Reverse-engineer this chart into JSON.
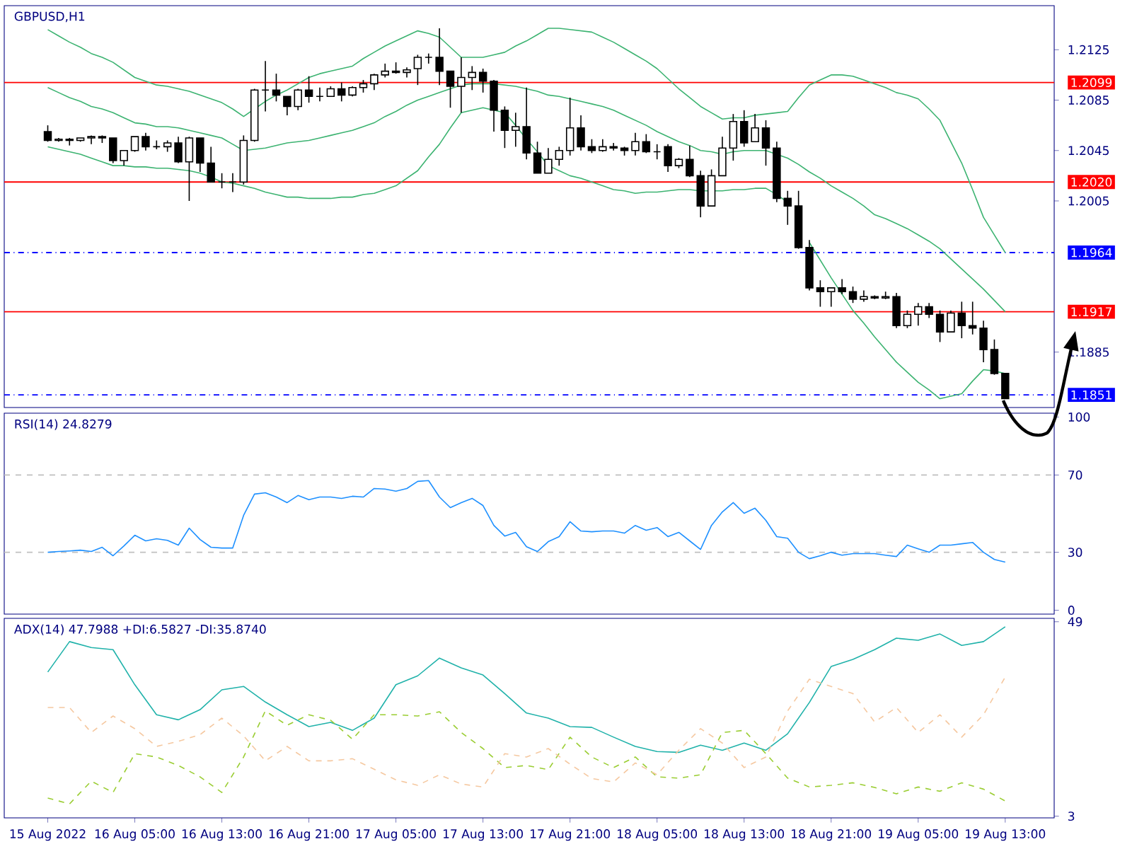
{
  "chart_data": [
    {
      "type": "candlestick",
      "title": "GBPUSD,H1",
      "color": "#000000",
      "categories": [
        null,
        null,
        null,
        null,
        null,
        null,
        null,
        null,
        null,
        null,
        null,
        null,
        null,
        null,
        null,
        null,
        null,
        null,
        null,
        null,
        null,
        null,
        null,
        null,
        null,
        null,
        null,
        null,
        null,
        null,
        null,
        null,
        null,
        null,
        null,
        null,
        null,
        null,
        null,
        null,
        null,
        null,
        null,
        null,
        null,
        null,
        null,
        null,
        null,
        null,
        null,
        null,
        null,
        null,
        null,
        null,
        null,
        null,
        null,
        null,
        null,
        null,
        null,
        null,
        null,
        null,
        null,
        null,
        null,
        null,
        null,
        null,
        null,
        null,
        null,
        null,
        null,
        null,
        null,
        null,
        null,
        null,
        null,
        null,
        null,
        null,
        null,
        null,
        null
      ],
      "ohlc": [
        [
          1.206,
          1.2065,
          1.2052,
          1.2053
        ],
        [
          1.2053,
          1.2055,
          1.2052,
          1.2054
        ],
        [
          1.2054,
          1.2055,
          1.2049,
          1.2053
        ],
        [
          1.2053,
          1.2055,
          1.2052,
          1.2055
        ],
        [
          1.2055,
          1.2057,
          1.205,
          1.2056
        ],
        [
          1.2056,
          1.2057,
          1.2051,
          1.2055
        ],
        [
          1.2055,
          1.2055,
          1.2035,
          1.2037
        ],
        [
          1.2037,
          1.2045,
          1.2033,
          1.2045
        ],
        [
          1.2045,
          1.2056,
          1.2044,
          1.2056
        ],
        [
          1.2056,
          1.2059,
          1.2045,
          1.2048
        ],
        [
          1.2048,
          1.2053,
          1.2046,
          1.2048
        ],
        [
          1.2048,
          1.2053,
          1.2044,
          1.2051
        ],
        [
          1.2051,
          1.2056,
          1.2035,
          1.2036
        ],
        [
          1.2036,
          1.2056,
          1.2005,
          1.2055
        ],
        [
          1.2055,
          1.2055,
          1.2028,
          1.2035
        ],
        [
          1.2035,
          1.2048,
          1.202,
          1.202
        ],
        [
          1.202,
          1.2027,
          1.2015,
          1.202
        ],
        [
          1.202,
          1.2027,
          1.2012,
          1.202
        ],
        [
          1.202,
          1.2057,
          1.2018,
          1.2053
        ],
        [
          1.2053,
          1.2094,
          1.2052,
          1.2093
        ],
        [
          1.2093,
          1.2116,
          1.2076,
          1.2093
        ],
        [
          1.2093,
          1.2106,
          1.2084,
          1.2089
        ],
        [
          1.2088,
          1.2088,
          1.2073,
          1.208
        ],
        [
          1.208,
          1.2094,
          1.2077,
          1.2093
        ],
        [
          1.2093,
          1.2104,
          1.2083,
          1.2088
        ],
        [
          1.2088,
          1.2095,
          1.2084,
          1.2088
        ],
        [
          1.2088,
          1.2096,
          1.2088,
          1.2094
        ],
        [
          1.2094,
          1.2099,
          1.2084,
          1.2089
        ],
        [
          1.2089,
          1.2096,
          1.2088,
          1.2095
        ],
        [
          1.2095,
          1.2101,
          1.2091,
          1.2098
        ],
        [
          1.2098,
          1.2106,
          1.2093,
          1.2105
        ],
        [
          1.2105,
          1.2114,
          1.2103,
          1.2108
        ],
        [
          1.2108,
          1.2115,
          1.2106,
          1.2107
        ],
        [
          1.2107,
          1.2111,
          1.2103,
          1.2109
        ],
        [
          1.211,
          1.2121,
          1.2097,
          1.2119
        ],
        [
          1.2119,
          1.2122,
          1.2114,
          1.2119
        ],
        [
          1.2119,
          1.2142,
          1.2097,
          1.2108
        ],
        [
          1.2108,
          1.2108,
          1.2079,
          1.2096
        ],
        [
          1.2096,
          1.2119,
          1.2075,
          1.2103
        ],
        [
          1.2103,
          1.2112,
          1.2093,
          1.2107
        ],
        [
          1.2107,
          1.211,
          1.2091,
          1.21
        ],
        [
          1.21,
          1.2101,
          1.206,
          1.2077
        ],
        [
          1.2077,
          1.208,
          1.2047,
          1.2061
        ],
        [
          1.2061,
          1.2075,
          1.2048,
          1.2064
        ],
        [
          1.2064,
          1.2095,
          1.2038,
          1.2043
        ],
        [
          1.2043,
          1.2052,
          1.2027,
          1.2027
        ],
        [
          1.2027,
          1.2047,
          1.2027,
          1.2038
        ],
        [
          1.2038,
          1.2048,
          1.2033,
          1.2045
        ],
        [
          1.2045,
          1.2087,
          1.2041,
          1.2063
        ],
        [
          1.2063,
          1.2073,
          1.2045,
          1.2048
        ],
        [
          1.2048,
          1.2054,
          1.2043,
          1.2045
        ],
        [
          1.2045,
          1.2054,
          1.2044,
          1.2048
        ],
        [
          1.2048,
          1.2051,
          1.2045,
          1.2047
        ],
        [
          1.2047,
          1.2048,
          1.2041,
          1.2045
        ],
        [
          1.2045,
          1.2059,
          1.2041,
          1.2052
        ],
        [
          1.2052,
          1.2058,
          1.2043,
          1.2044
        ],
        [
          1.2044,
          1.205,
          1.2038,
          1.2044
        ],
        [
          1.2048,
          1.205,
          1.2028,
          1.2033
        ],
        [
          1.2033,
          1.2039,
          1.2031,
          1.2038
        ],
        [
          1.2038,
          1.2049,
          1.2024,
          1.2025
        ],
        [
          1.2025,
          1.2029,
          1.1992,
          1.2001
        ],
        [
          1.2001,
          1.203,
          1.2001,
          1.2025
        ],
        [
          1.2025,
          1.2056,
          1.2025,
          1.2047
        ],
        [
          1.2047,
          1.2074,
          1.2037,
          1.2068
        ],
        [
          1.2068,
          1.2077,
          1.2048,
          1.2051
        ],
        [
          1.2052,
          1.2074,
          1.2052,
          1.2063
        ],
        [
          1.2063,
          1.2069,
          1.2033,
          1.2047
        ],
        [
          1.2047,
          1.2052,
          1.2004,
          1.2007
        ],
        [
          1.2007,
          1.2013,
          1.1986,
          1.2001
        ],
        [
          1.2001,
          1.2013,
          1.1967,
          1.1968
        ],
        [
          1.1968,
          1.1974,
          1.1934,
          1.1936
        ],
        [
          1.1936,
          1.1942,
          1.1921,
          1.1933
        ],
        [
          1.1933,
          1.1936,
          1.1921,
          1.1936
        ],
        [
          1.1936,
          1.1943,
          1.1931,
          1.1933
        ],
        [
          1.1933,
          1.1937,
          1.1924,
          1.1927
        ],
        [
          1.1927,
          1.1934,
          1.1925,
          1.1929
        ],
        [
          1.1929,
          1.193,
          1.1927,
          1.1928
        ],
        [
          1.1928,
          1.1933,
          1.1927,
          1.1929
        ],
        [
          1.1929,
          1.1932,
          1.1904,
          1.1906
        ],
        [
          1.1906,
          1.1918,
          1.1904,
          1.1915
        ],
        [
          1.1915,
          1.1924,
          1.1906,
          1.1921
        ],
        [
          1.1921,
          1.1924,
          1.1912,
          1.1915
        ],
        [
          1.1915,
          1.1918,
          1.1893,
          1.1901
        ],
        [
          1.1901,
          1.1918,
          1.1901,
          1.1916
        ],
        [
          1.1916,
          1.1925,
          1.1896,
          1.1906
        ],
        [
          1.1906,
          1.1925,
          1.1899,
          1.1904
        ],
        [
          1.1904,
          1.191,
          1.1877,
          1.1887
        ],
        [
          1.1887,
          1.1895,
          1.1867,
          1.1868
        ],
        [
          1.1868,
          1.1868,
          1.1848,
          1.1848
        ]
      ],
      "series": [
        {
          "type": "line",
          "color": "#3cb371",
          "values": [
            1.2141,
            1.2136,
            1.2131,
            1.2127,
            1.2122,
            1.2119,
            1.2115,
            1.2109,
            1.2103,
            1.21,
            1.2097,
            1.2096,
            1.2094,
            1.2092,
            1.2089,
            1.2086,
            1.2083,
            1.2078,
            1.2072,
            1.2078,
            1.2084,
            1.2089,
            1.2093,
            1.2098,
            1.2103,
            1.2106,
            1.2108,
            1.211,
            1.2112,
            1.2118,
            1.2123,
            1.2128,
            1.2132,
            1.2136,
            1.214,
            1.2138,
            1.2135,
            1.2127,
            1.2119,
            1.2119,
            1.2119,
            1.2121,
            1.2123,
            1.2128,
            1.2132,
            1.2137,
            1.2142,
            1.2142,
            1.2141,
            1.214,
            1.2139,
            1.2135,
            1.2131,
            1.2126,
            1.2121,
            1.2116,
            1.211,
            1.2102,
            1.2094,
            1.2087,
            1.208,
            1.2075,
            1.207,
            1.2071,
            1.2071,
            1.2073,
            1.2074,
            1.2075,
            1.2076,
            1.2087,
            1.2097,
            1.2101,
            1.2105,
            1.2105,
            1.2104,
            1.2101,
            1.2098,
            1.2095,
            1.2091,
            1.2089,
            1.2086,
            1.2078,
            1.2069,
            1.2052,
            1.2035,
            1.2014,
            1.1992,
            1.1978,
            1.1964
          ]
        },
        {
          "type": "line",
          "color": "#3cb371",
          "values": [
            1.2095,
            1.2091,
            1.2087,
            1.2084,
            1.208,
            1.2078,
            1.2075,
            1.2071,
            1.2067,
            1.2066,
            1.2064,
            1.2064,
            1.2063,
            1.2061,
            1.2059,
            1.2057,
            1.2055,
            1.205,
            1.2045,
            1.2046,
            1.2047,
            1.2049,
            1.2051,
            1.2052,
            1.2053,
            1.2055,
            1.2057,
            1.2059,
            1.2061,
            1.2064,
            1.2067,
            1.2072,
            1.2076,
            1.2081,
            1.2085,
            1.2088,
            1.2091,
            1.2094,
            1.2097,
            1.2098,
            1.2098,
            1.2098,
            1.2097,
            1.2096,
            1.2094,
            1.2092,
            1.2089,
            1.2088,
            1.2086,
            1.2084,
            1.2082,
            1.208,
            1.2077,
            1.2073,
            1.2069,
            1.2065,
            1.206,
            1.2056,
            1.2052,
            1.2049,
            1.2045,
            1.2044,
            1.2042,
            1.2044,
            1.2045,
            1.2045,
            1.2045,
            1.2042,
            1.2039,
            1.2034,
            1.2028,
            1.2023,
            1.2017,
            1.2012,
            1.2007,
            1.2001,
            1.1994,
            1.1991,
            1.1987,
            1.1983,
            1.1978,
            1.1973,
            1.1967,
            1.1959,
            1.1951,
            1.1943,
            1.1935,
            1.1926,
            1.1917
          ]
        },
        {
          "type": "line",
          "color": "#3cb371",
          "values": [
            1.2048,
            1.2046,
            1.2044,
            1.2042,
            1.2039,
            1.2036,
            1.2033,
            1.2033,
            1.2032,
            1.2032,
            1.2031,
            1.2031,
            1.203,
            1.2029,
            1.2027,
            1.2024,
            1.202,
            1.2019,
            1.2017,
            1.2015,
            1.2012,
            1.201,
            1.2008,
            1.2008,
            1.2007,
            1.2007,
            1.2007,
            1.2008,
            1.2008,
            1.201,
            1.2011,
            1.2014,
            1.2017,
            1.2023,
            1.2029,
            1.204,
            1.205,
            1.2063,
            1.2075,
            1.2077,
            1.2079,
            1.2077,
            1.2075,
            1.2065,
            1.2054,
            1.2044,
            1.2033,
            1.2029,
            1.2025,
            1.2023,
            1.202,
            1.2017,
            1.2014,
            1.2013,
            1.2011,
            1.2012,
            1.2012,
            1.2013,
            1.2014,
            1.2014,
            1.2013,
            1.2013,
            1.2013,
            1.2014,
            1.2014,
            1.2015,
            1.2015,
            1.201,
            1.2004,
            null,
            1.1972,
            1.1958,
            1.1944,
            1.1931,
            1.1918,
            1.1908,
            1.1897,
            1.1887,
            1.1877,
            1.1869,
            1.1861,
            1.1855,
            1.1848,
            1.185,
            1.1852,
            1.1862,
            1.1871,
            1.187,
            1.1868
          ]
        }
      ],
      "ylim": [
        1.1841,
        1.216
      ],
      "yticks": [
        1.2125,
        1.2085,
        1.2045,
        1.2005,
        1.1885
      ],
      "tick_labels": "y",
      "ref_lines": [
        {
          "axis": "y",
          "value": 1.2099,
          "label": "1.2099",
          "color": "#ff0000",
          "line_style": "solid"
        },
        {
          "axis": "y",
          "value": 1.202,
          "label": "1.2020",
          "color": "#ff0000",
          "line_style": "solid"
        },
        {
          "axis": "y",
          "value": 1.1964,
          "label": "1.1964",
          "color": "#0000ff",
          "line_style": "dashdot"
        },
        {
          "axis": "y",
          "value": 1.1917,
          "label": "1.1917",
          "color": "#ff0000",
          "line_style": "solid"
        },
        {
          "axis": "y",
          "value": 1.1851,
          "label": "1.1851",
          "color": "#0000ff",
          "line_style": "dashdot"
        }
      ]
    },
    {
      "type": "line",
      "title": "RSI(14) 24.8279",
      "color": "#1e90ff",
      "categories": [
        null,
        null,
        null,
        null,
        null,
        null,
        null,
        null,
        null,
        null,
        null,
        null,
        null,
        null,
        null,
        null,
        null,
        null,
        null,
        null,
        null,
        null,
        null,
        null,
        null,
        null,
        null,
        null,
        null,
        null,
        null,
        null,
        null,
        null,
        null,
        null,
        null,
        null,
        null,
        null,
        null,
        null,
        null,
        null,
        null,
        null,
        null,
        null,
        null,
        null,
        null,
        null,
        null,
        null,
        null,
        null,
        null,
        null,
        null,
        null,
        null,
        null,
        null,
        null,
        null,
        null,
        null,
        null,
        null,
        null,
        null,
        null,
        null,
        null,
        null,
        null,
        null,
        null,
        null,
        null,
        null,
        null,
        null,
        null,
        null,
        null,
        null,
        null,
        null
      ],
      "values": [
        30.0,
        30.4,
        30.7,
        31.1,
        30.4,
        32.6,
        28.2,
        33.3,
        38.8,
        35.9,
        37.0,
        36.2,
        33.7,
        42.5,
        36.6,
        32.6,
        32.2,
        32.2,
        49.1,
        60.1,
        60.8,
        58.6,
        55.7,
        59.4,
        57.2,
        58.6,
        58.6,
        57.9,
        59.0,
        58.6,
        63.0,
        62.7,
        61.6,
        63.0,
        66.7,
        67.1,
        58.6,
        53.1,
        55.7,
        57.9,
        54.2,
        43.9,
        38.4,
        40.3,
        32.9,
        30.4,
        35.5,
        38.1,
        45.8,
        41.0,
        40.6,
        41.0,
        41.0,
        39.9,
        43.9,
        41.4,
        42.8,
        38.1,
        40.3,
        35.9,
        31.5,
        43.9,
        50.9,
        55.7,
        50.2,
        52.8,
        46.5,
        38.1,
        37.3,
        30.0,
        26.7,
        28.2,
        30.0,
        28.5,
        29.3,
        29.3,
        29.3,
        28.5,
        27.8,
        33.7,
        31.8,
        30.0,
        33.7,
        33.7,
        34.4,
        35.1,
        30.0,
        26.3,
        24.9
      ],
      "ylim": [
        -2,
        102
      ],
      "yticks": [
        0,
        30,
        70,
        100
      ],
      "tick_labels": "y",
      "ref_lines": [
        {
          "axis": "y",
          "value": 70,
          "color": "#c0c0c0",
          "line_style": "dashed"
        },
        {
          "axis": "y",
          "value": 30,
          "color": "#c0c0c0",
          "line_style": "dashed"
        }
      ]
    },
    {
      "type": "line",
      "title": "ADX(14) 47.7988 +DI:6.5827 -DI:35.8740",
      "categories": [
        "15 Aug 2022",
        null,
        null,
        null,
        "16 Aug 05:00",
        null,
        null,
        null,
        "16 Aug 13:00",
        null,
        null,
        null,
        "16 Aug 21:00",
        null,
        null,
        null,
        "17 Aug 05:00",
        null,
        null,
        null,
        "17 Aug 13:00",
        null,
        null,
        null,
        "17 Aug 21:00",
        null,
        null,
        null,
        "18 Aug 05:00",
        null,
        null,
        null,
        "18 Aug 13:00",
        null,
        null,
        null,
        "18 Aug 21:00",
        null,
        null,
        null,
        "19 Aug 05:00",
        null,
        null,
        null,
        "19 Aug 13:00"
      ],
      "series": [
        {
          "color": "#20b2aa",
          "line_style": "solid",
          "values": [
            37.1,
            44.3,
            42.9,
            42.4,
            34.1,
            27.0,
            25.8,
            28.2,
            32.9,
            33.7,
            30.0,
            27.0,
            24.2,
            25.2,
            23.3,
            26.2,
            34.1,
            36.2,
            40.4,
            38.1,
            36.4,
            32.0,
            27.4,
            26.2,
            24.2,
            24.0,
            21.7,
            19.5,
            18.3,
            18.1,
            19.8,
            18.6,
            20.3,
            18.6,
            22.5,
            29.9,
            38.4,
            40.1,
            42.4,
            45.1,
            44.6,
            46.1,
            43.4,
            44.3,
            47.8
          ]
        },
        {
          "color": "#9acd32",
          "line_style": "dashed",
          "values": [
            7.3,
            5.9,
            11.3,
            8.6,
            17.8,
            17.0,
            15.0,
            12.3,
            8.6,
            17.0,
            27.9,
            24.5,
            27.0,
            25.7,
            21.2,
            27.0,
            27.0,
            26.7,
            27.7,
            22.8,
            19.0,
            14.5,
            15.0,
            14.0,
            21.7,
            17.0,
            14.5,
            17.0,
            12.3,
            12.0,
            12.8,
            22.8,
            23.3,
            17.8,
            12.0,
            9.9,
            10.3,
            10.9,
            9.8,
            8.3,
            9.9,
            8.9,
            10.9,
            9.4,
            6.6
          ]
        },
        {
          "color": "#f5c8a0",
          "line_style": "dashed",
          "values": [
            28.7,
            28.7,
            22.8,
            26.7,
            23.7,
            19.5,
            20.7,
            22.3,
            26.2,
            22.0,
            16.1,
            19.5,
            16.1,
            16.1,
            16.6,
            14.1,
            11.6,
            10.3,
            12.8,
            10.6,
            9.9,
            17.8,
            17.0,
            19.0,
            15.3,
            11.9,
            11.1,
            15.6,
            12.8,
            18.6,
            23.7,
            20.3,
            14.5,
            17.0,
            27.9,
            35.4,
            33.7,
            32.0,
            25.3,
            28.7,
            22.8,
            27.0,
            21.7,
            27.0,
            35.9
          ]
        }
      ],
      "ylim": [
        2.6,
        49.8
      ],
      "yticks": [
        3,
        49
      ]
    }
  ]
}
